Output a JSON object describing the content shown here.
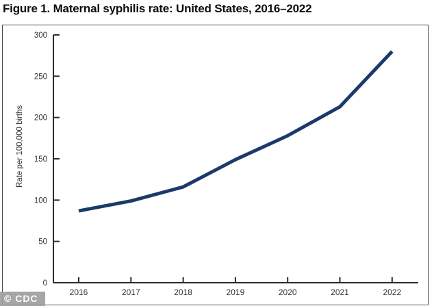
{
  "figure": {
    "title": "Figure 1. Maternal syphilis rate: United States, 2016–2022"
  },
  "watermark": {
    "label": "© CDC"
  },
  "chart_data": {
    "type": "line",
    "title": "Figure 1. Maternal syphilis rate: United States, 2016–2022",
    "categories": [
      "2016",
      "2017",
      "2018",
      "2019",
      "2020",
      "2021",
      "2022"
    ],
    "series": [
      {
        "name": "Maternal syphilis rate",
        "values": [
          87,
          99,
          116,
          149,
          178,
          213,
          280
        ]
      }
    ],
    "xlabel": "",
    "ylabel": "Rate per 100,000 births",
    "ylim": [
      0,
      300
    ],
    "yticks": [
      0,
      50,
      100,
      150,
      200,
      250,
      300
    ],
    "grid": false,
    "legend": "none",
    "colors": {
      "line": "#1b3a6b",
      "axis": "#2b2b2b",
      "tick_text": "#333333"
    }
  }
}
